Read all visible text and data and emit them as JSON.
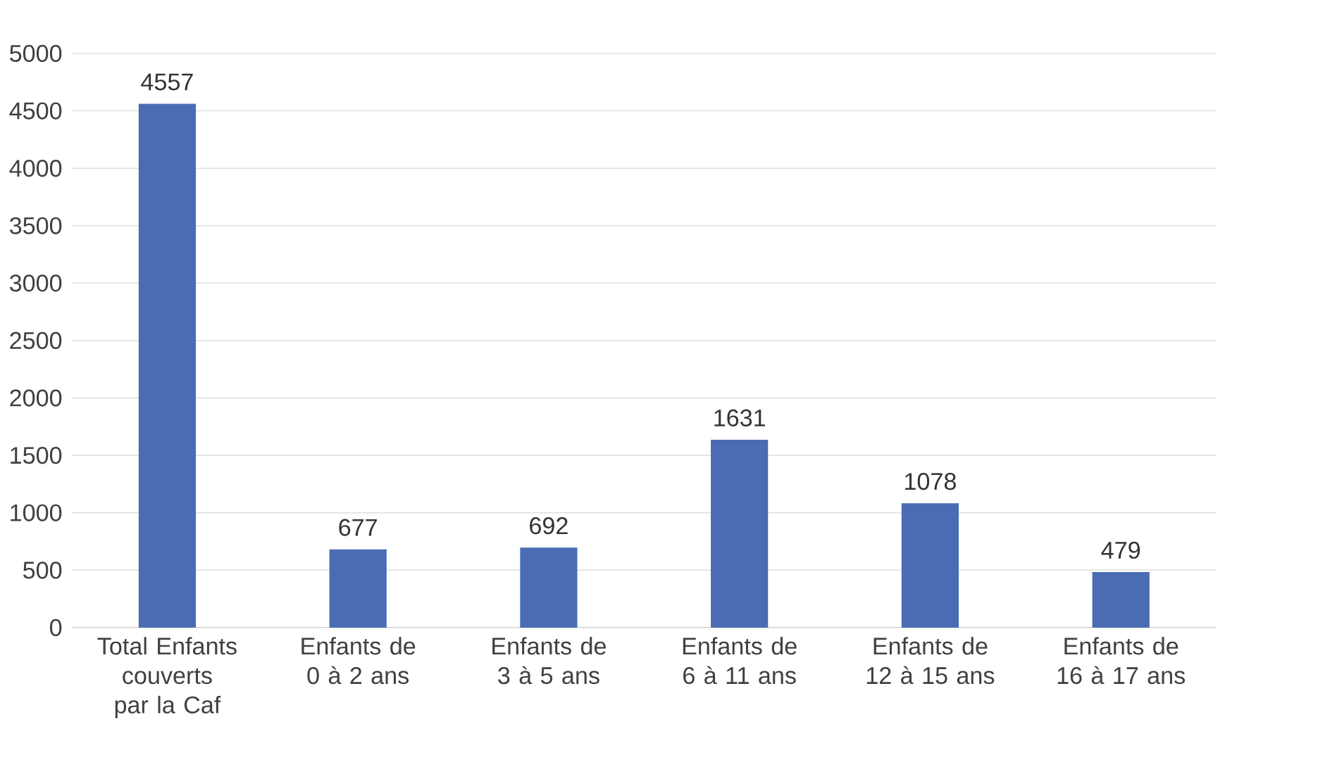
{
  "chart_data": {
    "type": "bar",
    "categories": [
      "Total Enfants couverts par la Caf",
      "Enfants de 0 à 2 ans",
      "Enfants de 3 à 5 ans",
      "Enfants de 6 à 11 ans",
      "Enfants de 12 à 15 ans",
      "Enfants de 16 à 17 ans"
    ],
    "values": [
      4557,
      677,
      692,
      1631,
      1078,
      479
    ],
    "color": "#4a6cb3",
    "ylim": [
      0,
      5000
    ],
    "yticks": [
      0,
      500,
      1000,
      1500,
      2000,
      2500,
      3000,
      3500,
      4000,
      4500,
      5000
    ],
    "grid": "y",
    "data_labels": true
  }
}
